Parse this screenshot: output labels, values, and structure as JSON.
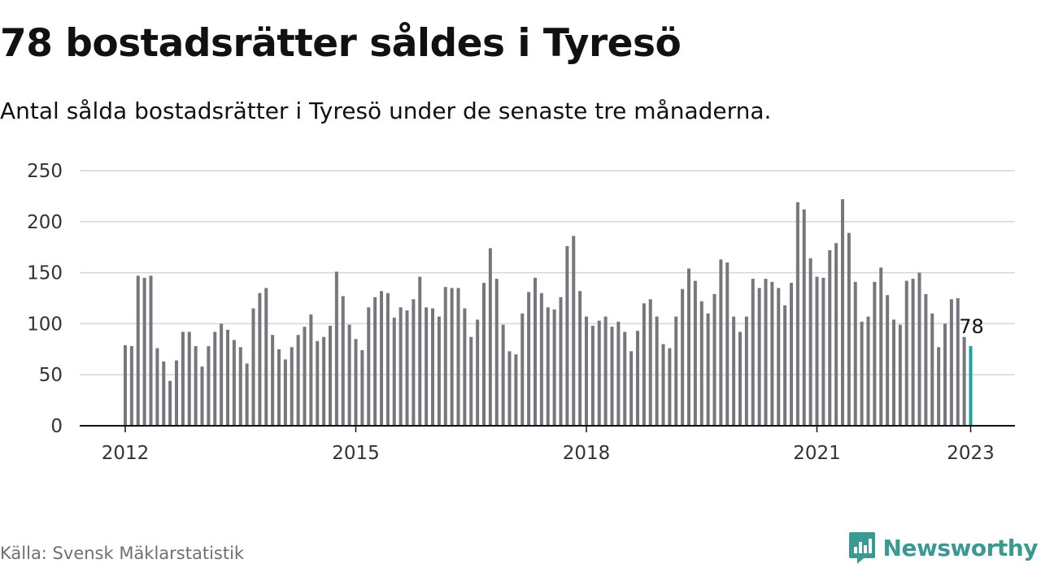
{
  "title": "78 bostadsrätter såldes i Tyresö",
  "subtitle": "Antal sålda bostadsrätter i Tyresö under de senaste tre månaderna.",
  "source": "Källa: Svensk Mäklarstatistik",
  "brand": {
    "name": "Newsworthy",
    "color": "#3a9a91",
    "icon": "newsworthy-logo-icon"
  },
  "colors": {
    "bar": "#76767c",
    "highlight": "#1aa39a",
    "grid": "#d6d6d6",
    "axis": "#111111",
    "text": "#333333"
  },
  "chart_data": {
    "type": "bar",
    "title": "",
    "xlabel": "",
    "ylabel": "",
    "ylim": [
      0,
      250
    ],
    "y_ticks": [
      0,
      50,
      100,
      150,
      200,
      250
    ],
    "x_tick_labels": [
      "2012",
      "2015",
      "2018",
      "2021",
      "2023"
    ],
    "x_ticks": [
      "2012-01",
      "2015-01",
      "2018-01",
      "2021-01",
      "2023-01"
    ],
    "start_month": "2012-01",
    "grid": true,
    "highlight_last": true,
    "annotation": "78",
    "values": [
      79,
      78,
      147,
      145,
      147,
      76,
      63,
      44,
      64,
      92,
      92,
      78,
      58,
      78,
      92,
      100,
      94,
      84,
      77,
      61,
      115,
      130,
      135,
      89,
      75,
      65,
      77,
      89,
      97,
      109,
      83,
      87,
      98,
      151,
      127,
      99,
      85,
      74,
      116,
      126,
      132,
      130,
      106,
      116,
      113,
      124,
      146,
      116,
      115,
      107,
      136,
      135,
      135,
      115,
      87,
      104,
      140,
      174,
      144,
      99,
      73,
      70,
      110,
      131,
      145,
      130,
      116,
      114,
      126,
      176,
      186,
      132,
      107,
      98,
      103,
      107,
      97,
      102,
      92,
      73,
      93,
      120,
      124,
      107,
      80,
      76,
      107,
      134,
      154,
      142,
      122,
      110,
      129,
      163,
      160,
      107,
      92,
      107,
      144,
      135,
      144,
      141,
      135,
      118,
      140,
      219,
      212,
      164,
      146,
      145,
      172,
      179,
      222,
      189,
      141,
      102,
      107,
      141,
      155,
      128,
      104,
      99,
      142,
      144,
      150,
      129,
      110,
      77,
      100,
      124,
      125,
      87,
      78
    ]
  }
}
